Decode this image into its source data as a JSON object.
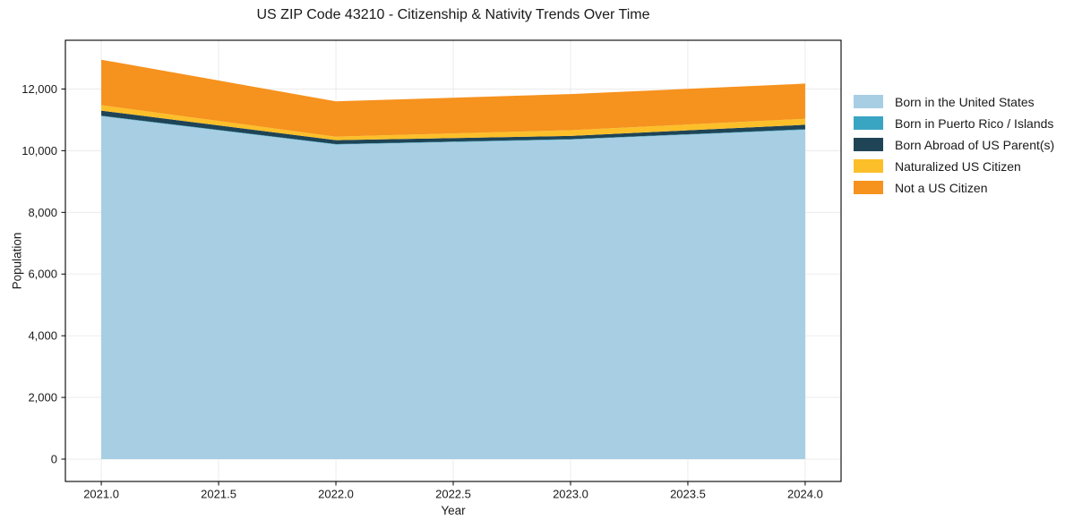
{
  "chart_data": {
    "type": "area",
    "stacked": true,
    "title": "US ZIP Code 43210 - Citizenship & Nativity Trends Over Time",
    "xlabel": "Year",
    "ylabel": "Population",
    "x": [
      2021,
      2022,
      2023,
      2024
    ],
    "series": [
      {
        "name": "Born in the United States",
        "color": "#a8cee3",
        "values": [
          11120,
          10200,
          10360,
          10680
        ]
      },
      {
        "name": "Born in Puerto Rico / Islands",
        "color": "#3aa5c3",
        "values": [
          15,
          15,
          15,
          15
        ]
      },
      {
        "name": "Born Abroad of US Parent(s)",
        "color": "#1f4456",
        "values": [
          165,
          125,
          105,
          145
        ]
      },
      {
        "name": "Naturalized US Citizen",
        "color": "#fcbf2a",
        "values": [
          175,
          115,
          185,
          195
        ]
      },
      {
        "name": "Not a US Citizen",
        "color": "#f6921e",
        "values": [
          1475,
          1145,
          1170,
          1140
        ]
      }
    ],
    "totals": [
      12950,
      11600,
      11835,
      12175
    ],
    "x_ticks": {
      "values": [
        2021.0,
        2021.5,
        2022.0,
        2022.5,
        2023.0,
        2023.5,
        2024.0
      ],
      "labels": [
        "2021.0",
        "2021.5",
        "2022.0",
        "2022.5",
        "2023.0",
        "2023.5",
        "2024.0"
      ]
    },
    "y_ticks": {
      "values": [
        0,
        2000,
        4000,
        6000,
        8000,
        10000,
        12000
      ],
      "labels": [
        "0",
        "2,000",
        "4,000",
        "6,000",
        "8,000",
        "10,000",
        "12,000"
      ]
    },
    "xlim": [
      2020.847,
      2024.153
    ],
    "ylim": [
      -725,
      13580
    ],
    "grid": true,
    "legend_position": "right",
    "grid_color": "#e9e9e9",
    "spine_color": "#000000",
    "text_color": "#1a1a1a"
  }
}
